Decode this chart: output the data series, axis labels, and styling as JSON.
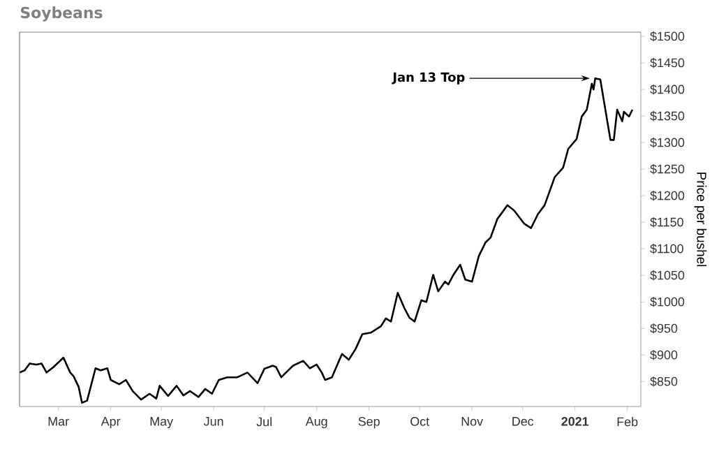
{
  "chart_data": {
    "type": "line",
    "title": "Soybeans",
    "ylabel": "Price per bushel",
    "x": [
      "2020-02-07",
      "2020-02-10",
      "2020-02-13",
      "2020-02-17",
      "2020-02-20",
      "2020-02-23",
      "2020-02-27",
      "2020-03-04",
      "2020-03-08",
      "2020-03-10",
      "2020-03-13",
      "2020-03-15",
      "2020-03-18",
      "2020-03-23",
      "2020-03-26",
      "2020-03-30",
      "2020-04-01",
      "2020-04-06",
      "2020-04-10",
      "2020-04-14",
      "2020-04-19",
      "2020-04-24",
      "2020-04-28",
      "2020-04-30",
      "2020-05-05",
      "2020-05-10",
      "2020-05-14",
      "2020-05-18",
      "2020-05-23",
      "2020-05-27",
      "2020-05-31",
      "2020-06-04",
      "2020-06-09",
      "2020-06-15",
      "2020-06-21",
      "2020-06-27",
      "2020-07-01",
      "2020-07-06",
      "2020-07-08",
      "2020-07-11",
      "2020-07-18",
      "2020-07-24",
      "2020-07-28",
      "2020-08-01",
      "2020-08-04",
      "2020-08-06",
      "2020-08-10",
      "2020-08-16",
      "2020-08-20",
      "2020-08-24",
      "2020-08-28",
      "2020-09-02",
      "2020-09-04",
      "2020-09-08",
      "2020-09-11",
      "2020-09-14",
      "2020-09-18",
      "2020-09-22",
      "2020-09-25",
      "2020-09-28",
      "2020-10-02",
      "2020-10-05",
      "2020-10-09",
      "2020-10-12",
      "2020-10-16",
      "2020-10-18",
      "2020-10-21",
      "2020-10-25",
      "2020-10-28",
      "2020-11-01",
      "2020-11-05",
      "2020-11-09",
      "2020-11-12",
      "2020-11-16",
      "2020-11-22",
      "2020-11-26",
      "2020-12-02",
      "2020-12-06",
      "2020-12-10",
      "2020-12-14",
      "2020-12-20",
      "2020-12-25",
      "2020-12-28",
      "2021-01-02",
      "2021-01-05",
      "2021-01-08",
      "2021-01-11",
      "2021-01-12",
      "2021-01-13",
      "2021-01-16",
      "2021-01-19",
      "2021-01-22",
      "2021-01-24",
      "2021-01-26",
      "2021-01-29",
      "2021-01-30",
      "2021-02-02",
      "2021-02-04"
    ],
    "values": [
      867,
      871,
      884,
      882,
      884,
      867,
      877,
      895,
      867,
      860,
      840,
      810,
      814,
      875,
      871,
      875,
      853,
      845,
      853,
      832,
      816,
      827,
      818,
      842,
      823,
      842,
      824,
      832,
      821,
      836,
      827,
      853,
      858,
      858,
      867,
      847,
      874,
      880,
      877,
      858,
      880,
      889,
      875,
      882,
      867,
      853,
      858,
      902,
      891,
      911,
      939,
      942,
      946,
      954,
      969,
      963,
      1017,
      988,
      970,
      963,
      1003,
      1000,
      1051,
      1020,
      1038,
      1033,
      1051,
      1070,
      1042,
      1038,
      1086,
      1112,
      1121,
      1156,
      1182,
      1172,
      1147,
      1139,
      1165,
      1182,
      1235,
      1253,
      1288,
      1307,
      1349,
      1362,
      1411,
      1400,
      1421,
      1419,
      1362,
      1305,
      1305,
      1362,
      1340,
      1358,
      1349,
      1362
    ],
    "color": "#000000",
    "xlim": [
      "2020-02-07",
      "2021-02-09"
    ],
    "xticks": [
      {
        "value": "2020-03-01",
        "label": "Mar"
      },
      {
        "value": "2020-04-01",
        "label": "Apr"
      },
      {
        "value": "2020-05-01",
        "label": "May"
      },
      {
        "value": "2020-06-01",
        "label": "Jun"
      },
      {
        "value": "2020-07-01",
        "label": "Jul"
      },
      {
        "value": "2020-08-01",
        "label": "Aug"
      },
      {
        "value": "2020-09-01",
        "label": "Sep"
      },
      {
        "value": "2020-10-01",
        "label": "Oct"
      },
      {
        "value": "2020-11-01",
        "label": "Nov"
      },
      {
        "value": "2020-12-01",
        "label": "Dec"
      },
      {
        "value": "2021-01-01",
        "label": "**2021**"
      },
      {
        "value": "2021-02-01",
        "label": "Feb"
      }
    ],
    "ylim": [
      803,
      1508
    ],
    "yticks": [
      {
        "value": 850,
        "label": "$850"
      },
      {
        "value": 900,
        "label": "$900"
      },
      {
        "value": 950,
        "label": "$950"
      },
      {
        "value": 1000,
        "label": "$1000"
      },
      {
        "value": 1050,
        "label": "$1050"
      },
      {
        "value": 1100,
        "label": "$1100"
      },
      {
        "value": 1150,
        "label": "$1150"
      },
      {
        "value": 1200,
        "label": "$1200"
      },
      {
        "value": 1250,
        "label": "$1250"
      },
      {
        "value": 1300,
        "label": "$1300"
      },
      {
        "value": 1350,
        "label": "$1350"
      },
      {
        "value": 1400,
        "label": "$1400"
      },
      {
        "value": 1450,
        "label": "$1450"
      },
      {
        "value": 1500,
        "label": "$1500"
      }
    ],
    "annotations": [
      {
        "text": "Jan 13 Top",
        "x": "2021-01-13",
        "y": 1421
      }
    ]
  }
}
